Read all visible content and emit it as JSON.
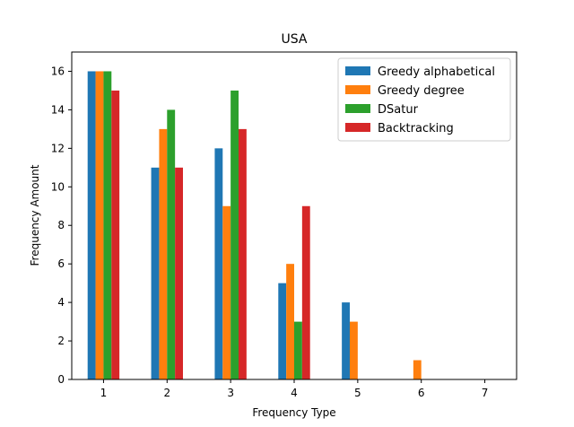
{
  "chart_data": {
    "type": "bar",
    "title": "USA",
    "xlabel": "Frequency Type",
    "ylabel": "Frequency Amount",
    "categories": [
      "1",
      "2",
      "3",
      "4",
      "5",
      "6",
      "7"
    ],
    "ylim": [
      0,
      17
    ],
    "yticks": [
      "0",
      "2",
      "4",
      "6",
      "8",
      "10",
      "12",
      "14",
      "16"
    ],
    "legend_position": "top-right",
    "grid": false,
    "series": [
      {
        "name": "Greedy alphabetical",
        "color": "#1f77b4",
        "values": [
          16,
          11,
          12,
          5,
          4,
          0,
          0
        ]
      },
      {
        "name": "Greedy degree",
        "color": "#ff7f0e",
        "values": [
          16,
          13,
          9,
          6,
          3,
          1,
          0
        ]
      },
      {
        "name": "DSatur",
        "color": "#2ca02c",
        "values": [
          16,
          14,
          15,
          3,
          0,
          0,
          0
        ]
      },
      {
        "name": "Backtracking",
        "color": "#d62728",
        "values": [
          15,
          11,
          13,
          9,
          0,
          0,
          0
        ]
      }
    ]
  }
}
